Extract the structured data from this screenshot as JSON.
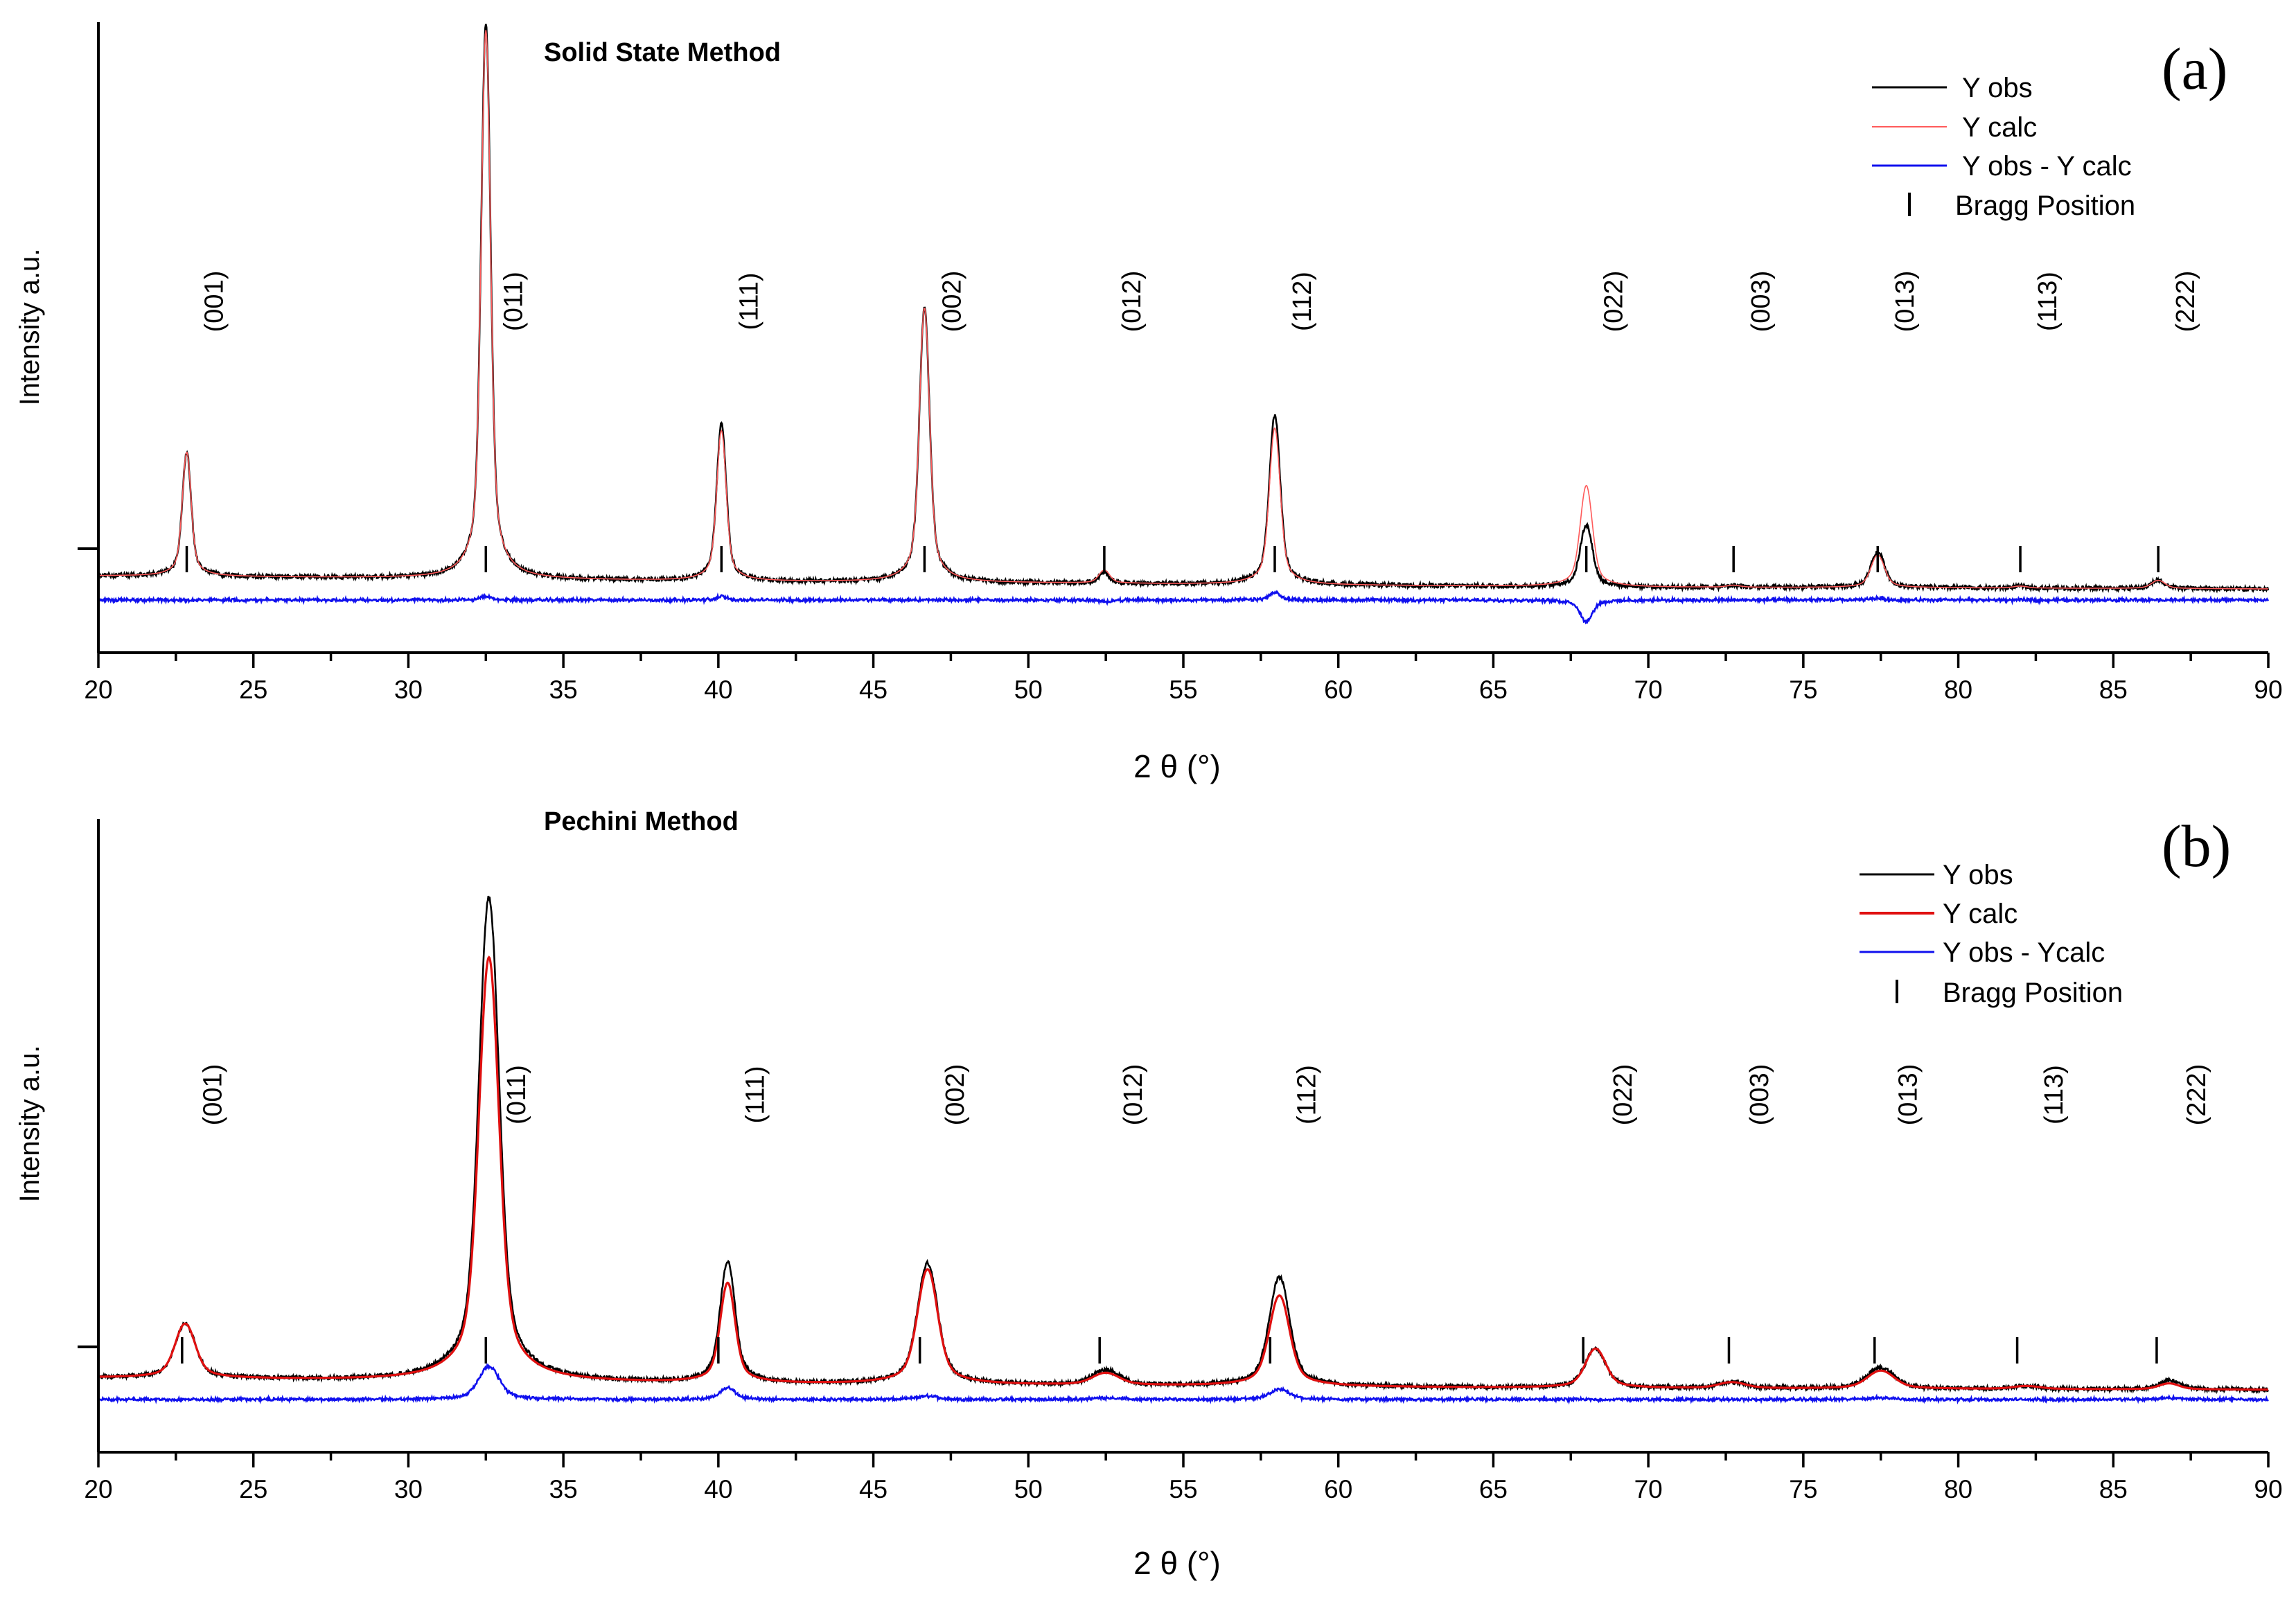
{
  "chart_data": [
    {
      "type": "line",
      "panel_label": "(a)",
      "title": "Solid State Method",
      "xlabel": "2 θ (°)",
      "ylabel": "Intensity a.u.",
      "xlim": [
        20,
        90
      ],
      "xticks": [
        20,
        25,
        30,
        35,
        40,
        45,
        50,
        55,
        60,
        65,
        70,
        75,
        80,
        85,
        90
      ],
      "ylim": [
        -18,
        175
      ],
      "baseline": 0,
      "legend_position": "top-right",
      "series": [
        {
          "name": "Y obs",
          "color": "#000000",
          "role": "obs"
        },
        {
          "name": "Y calc",
          "color": "#ff5a5a",
          "role": "calc"
        },
        {
          "name": "Y obs - Y calc",
          "color": "#1010ee",
          "role": "diff"
        }
      ],
      "bragg_legend": "Bragg Position",
      "background": [
        [
          20,
          5.5
        ],
        [
          30,
          4.8
        ],
        [
          40,
          3.8
        ],
        [
          50,
          3.3
        ],
        [
          60,
          2.6
        ],
        [
          70,
          2.0
        ],
        [
          80,
          1.8
        ],
        [
          90,
          1.5
        ]
      ],
      "peaks": [
        {
          "hkl": "(001)",
          "pos": 22.85,
          "obs": 38,
          "calc": 38,
          "width": 0.13
        },
        {
          "hkl": "(011)",
          "pos": 32.5,
          "obs": 170,
          "calc": 168,
          "width": 0.14
        },
        {
          "hkl": "(111)",
          "pos": 40.1,
          "obs": 48,
          "calc": 46,
          "width": 0.14
        },
        {
          "hkl": "(002)",
          "pos": 46.65,
          "obs": 84,
          "calc": 84,
          "width": 0.15
        },
        {
          "hkl": "(012)",
          "pos": 52.45,
          "obs": 3,
          "calc": 4,
          "width": 0.16
        },
        {
          "hkl": "(112)",
          "pos": 57.95,
          "obs": 52,
          "calc": 48,
          "width": 0.16
        },
        {
          "hkl": "(022)",
          "pos": 68.0,
          "obs": 19,
          "calc": 31,
          "width": 0.18
        },
        {
          "hkl": "(003)",
          "pos": 72.75,
          "obs": 0.6,
          "calc": 0.6,
          "width": 0.2
        },
        {
          "hkl": "(013)",
          "pos": 77.4,
          "obs": 11,
          "calc": 10,
          "width": 0.2
        },
        {
          "hkl": "(113)",
          "pos": 82.0,
          "obs": 0.6,
          "calc": 0.6,
          "width": 0.2
        },
        {
          "hkl": "(222)",
          "pos": 86.45,
          "obs": 2.5,
          "calc": 2.5,
          "width": 0.2
        }
      ]
    },
    {
      "type": "line",
      "panel_label": "(b)",
      "title": "Pechini Method",
      "xlabel": "2 θ (°)",
      "ylabel": "Intensity a.u.",
      "xlim": [
        20,
        90
      ],
      "xticks": [
        20,
        25,
        30,
        35,
        40,
        45,
        50,
        55,
        60,
        65,
        70,
        75,
        80,
        85,
        90
      ],
      "ylim": [
        -19,
        190
      ],
      "baseline": 0,
      "legend_position": "top-right",
      "series": [
        {
          "name": "Y obs",
          "color": "#000000",
          "role": "obs"
        },
        {
          "name": "Y calc",
          "color": "#e01010",
          "role": "calc"
        },
        {
          "name": "Y obs - Ycalc",
          "color": "#1010ee",
          "role": "diff"
        }
      ],
      "bragg_legend": "Bragg Position",
      "background": [
        [
          20,
          5.5
        ],
        [
          30,
          4.5
        ],
        [
          40,
          3.5
        ],
        [
          50,
          3.0
        ],
        [
          60,
          2.5
        ],
        [
          70,
          2.0
        ],
        [
          80,
          1.8
        ],
        [
          90,
          1.6
        ]
      ],
      "peaks": [
        {
          "hkl": "(001)",
          "pos": 22.8,
          "obs": 18,
          "calc": 18,
          "width": 0.3
        },
        {
          "hkl": "(011)",
          "pos": 32.6,
          "obs": 160,
          "calc": 140,
          "width": 0.3
        },
        {
          "hkl": "(111)",
          "pos": 40.3,
          "obs": 40,
          "calc": 33,
          "width": 0.22
        },
        {
          "hkl": "(002)",
          "pos": 46.75,
          "obs": 40,
          "calc": 38,
          "width": 0.3
        },
        {
          "hkl": "(012)",
          "pos": 52.5,
          "obs": 5,
          "calc": 4,
          "width": 0.4
        },
        {
          "hkl": "(112)",
          "pos": 58.1,
          "obs": 36,
          "calc": 30,
          "width": 0.3
        },
        {
          "hkl": "(022)",
          "pos": 68.3,
          "obs": 13,
          "calc": 13,
          "width": 0.3
        },
        {
          "hkl": "(003)",
          "pos": 72.7,
          "obs": 2,
          "calc": 2,
          "width": 0.4
        },
        {
          "hkl": "(013)",
          "pos": 77.5,
          "obs": 7,
          "calc": 6,
          "width": 0.4
        },
        {
          "hkl": "(113)",
          "pos": 82.2,
          "obs": 1,
          "calc": 1,
          "width": 0.4
        },
        {
          "hkl": "(222)",
          "pos": 86.8,
          "obs": 3,
          "calc": 2,
          "width": 0.3
        }
      ],
      "bragg_positions": [
        22.7,
        32.5,
        40.0,
        46.5,
        52.3,
        57.8,
        67.9,
        72.6,
        77.3,
        81.9,
        86.4
      ]
    }
  ]
}
